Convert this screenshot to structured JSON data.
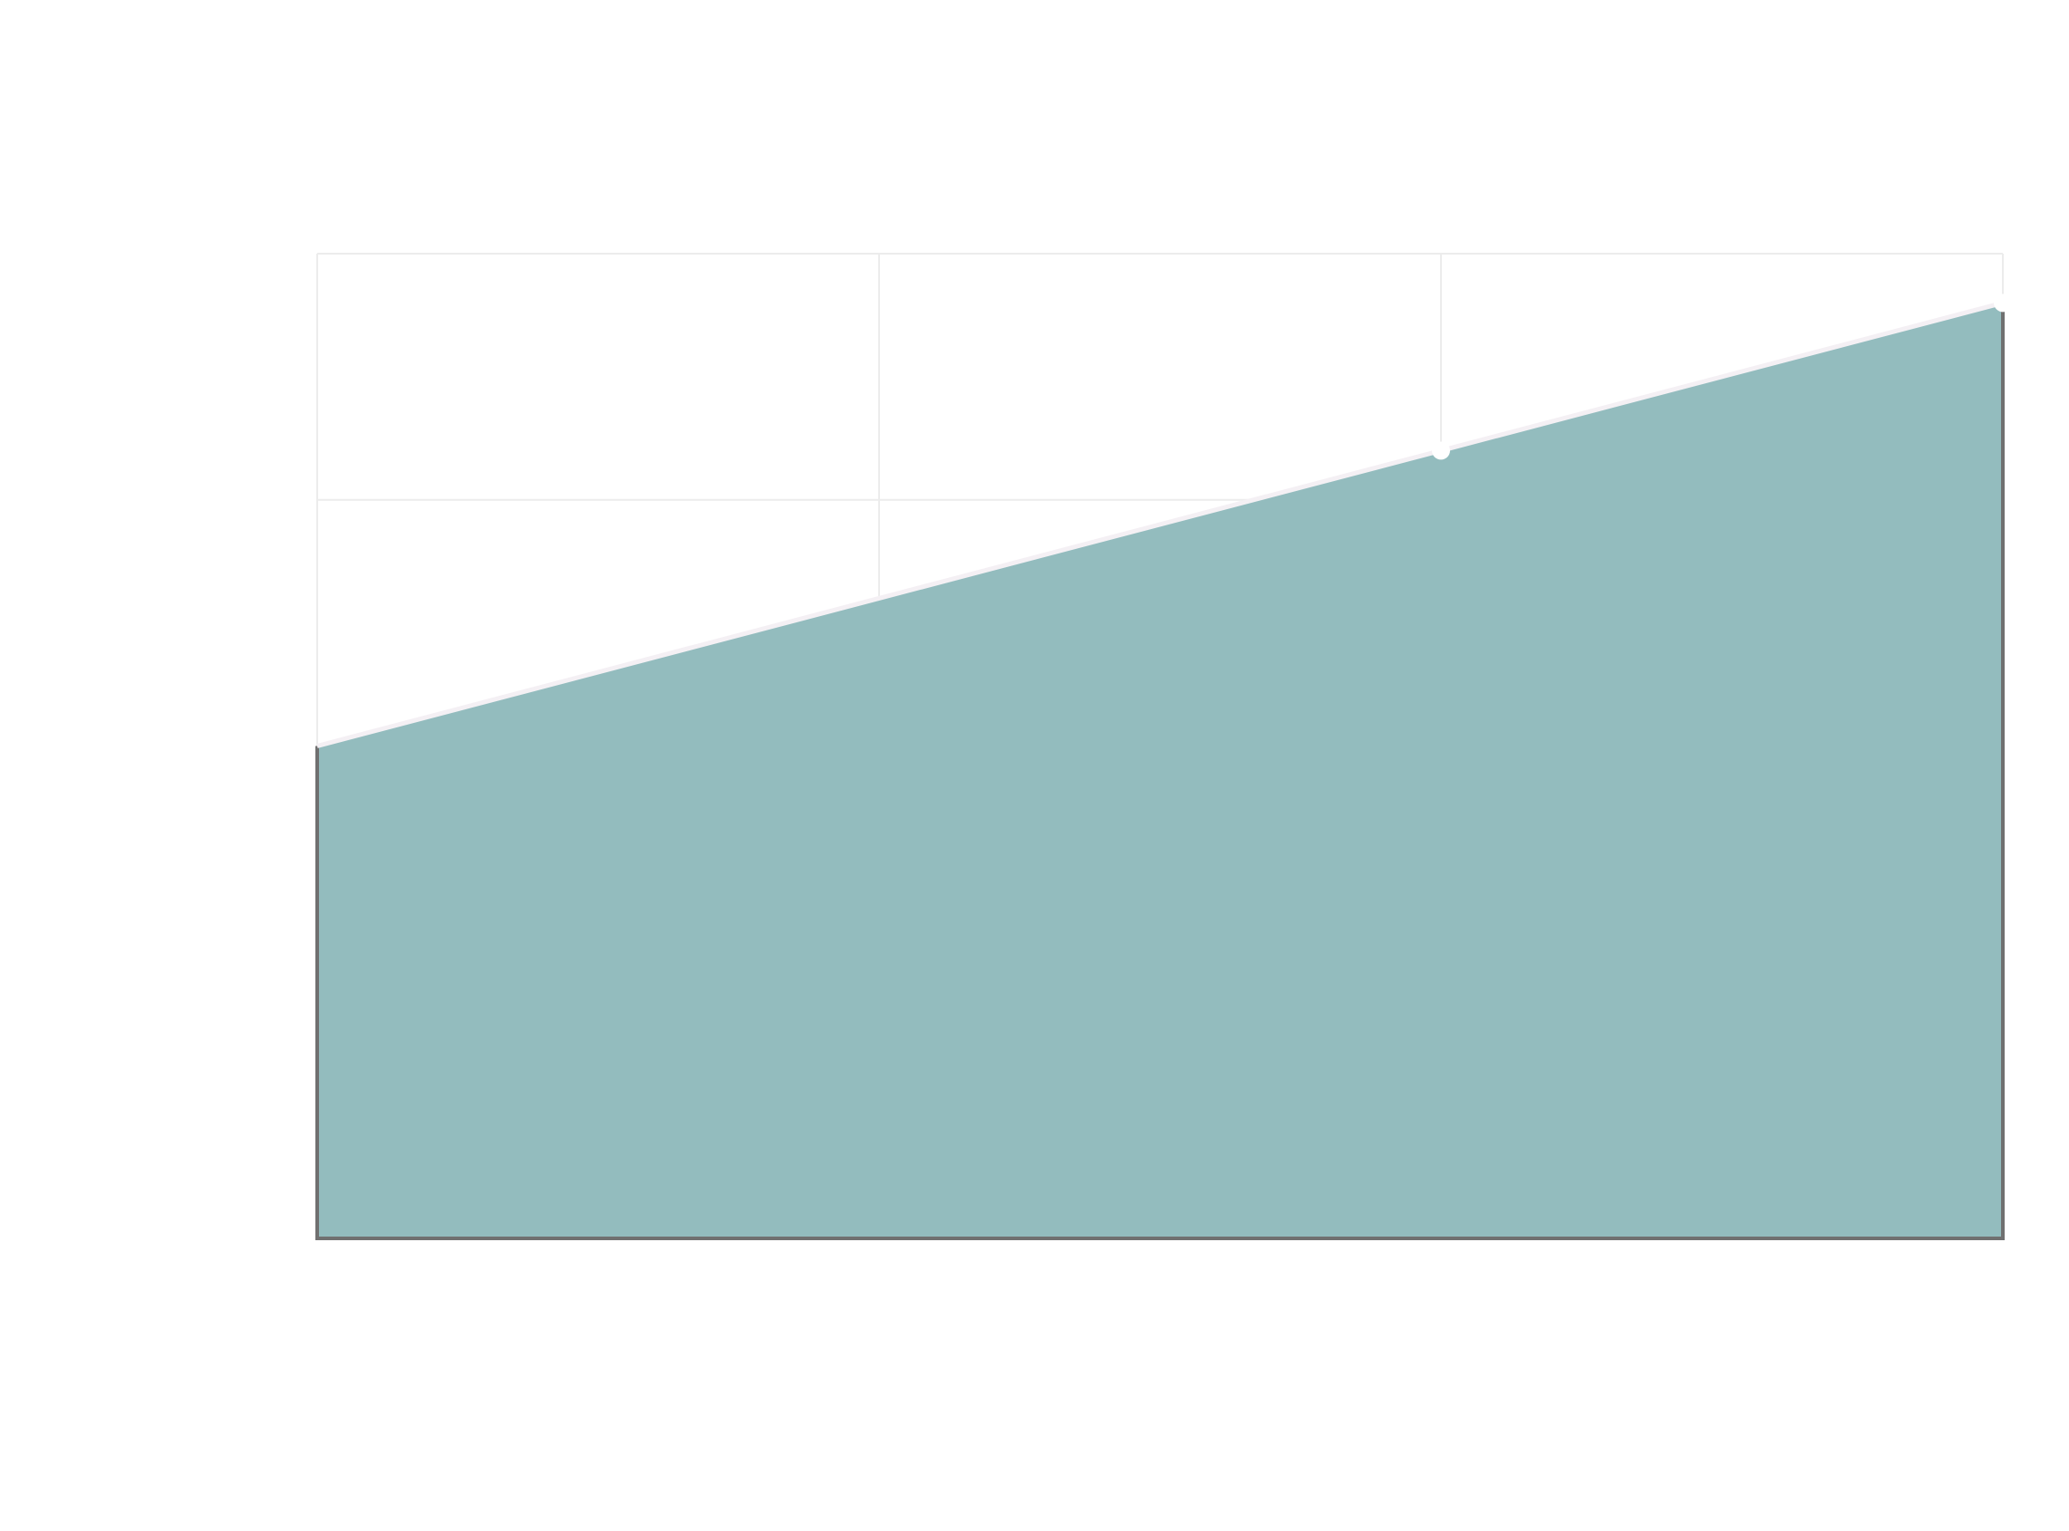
{
  "chart_data": {
    "type": "area",
    "title": "",
    "xlabel": "",
    "ylabel": "",
    "x": [
      0,
      1,
      2,
      3
    ],
    "xlim": [
      0,
      3
    ],
    "ylim": [
      0,
      4
    ],
    "grid": true,
    "legend": "none",
    "series": [
      {
        "values": [
          2.0,
          2.6,
          3.2,
          3.8
        ],
        "markers": [
          false,
          false,
          true,
          true
        ]
      }
    ],
    "colors": {
      "fill": "#8fbabc",
      "boundary": "#f4f0f4",
      "frame": "#707070",
      "grid": "#ececec",
      "marker": "#ffffff"
    }
  }
}
